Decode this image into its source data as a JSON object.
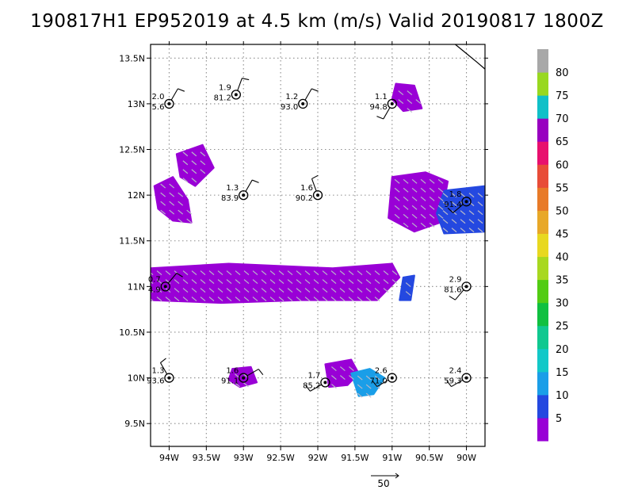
{
  "title": "190817H1 EP952019 at 4.5 km (m/s) Valid 20190817 1800Z",
  "chart_data": {
    "type": "scatter",
    "title": "190817H1 EP952019 at 4.5 km (m/s) Valid 20190817 1800Z",
    "xlim": [
      -94.25,
      -89.75
    ],
    "ylim": [
      9.25,
      13.65
    ],
    "x_ticks": [
      {
        "v": -94.0,
        "label": "94W"
      },
      {
        "v": -93.5,
        "label": "93.5W"
      },
      {
        "v": -93.0,
        "label": "93W"
      },
      {
        "v": -92.5,
        "label": "92.5W"
      },
      {
        "v": -92.0,
        "label": "92W"
      },
      {
        "v": -91.5,
        "label": "91.5W"
      },
      {
        "v": -91.0,
        "label": "91W"
      },
      {
        "v": -90.5,
        "label": "90.5W"
      },
      {
        "v": -90.0,
        "label": "90W"
      }
    ],
    "y_ticks": [
      {
        "v": 9.5,
        "label": "9.5N"
      },
      {
        "v": 10.0,
        "label": "10N"
      },
      {
        "v": 10.5,
        "label": "10.5N"
      },
      {
        "v": 11.0,
        "label": "11N"
      },
      {
        "v": 11.5,
        "label": "11.5N"
      },
      {
        "v": 12.0,
        "label": "12N"
      },
      {
        "v": 12.5,
        "label": "12.5N"
      },
      {
        "v": 13.0,
        "label": "13N"
      },
      {
        "v": 13.5,
        "label": "13.5N"
      }
    ],
    "grid": true,
    "colorbar": {
      "labels": [
        "5",
        "10",
        "15",
        "20",
        "25",
        "30",
        "35",
        "40",
        "45",
        "50",
        "55",
        "60",
        "65",
        "70",
        "75",
        "80"
      ],
      "colors": [
        "#9900d6",
        "#2448e0",
        "#1a9ee8",
        "#12c8c8",
        "#10c890",
        "#10c040",
        "#52cc14",
        "#a8d820",
        "#e8d820",
        "#e8a828",
        "#e87a28",
        "#e84c38",
        "#e8106e",
        "#9800c0",
        "#10c0c8",
        "#98d820",
        "#a8a8a8"
      ]
    },
    "reference_vector": {
      "value": 50,
      "label": "50"
    },
    "wind_regions": [
      {
        "pts": [
          [
            -94.25,
            11.2
          ],
          [
            -93.2,
            11.25
          ],
          [
            -91.8,
            11.2
          ],
          [
            -91.0,
            11.25
          ],
          [
            -90.9,
            11.1
          ],
          [
            -91.2,
            10.85
          ],
          [
            -92.2,
            10.85
          ],
          [
            -93.3,
            10.82
          ],
          [
            -94.25,
            10.85
          ]
        ],
        "level": 1
      },
      {
        "pts": [
          [
            -93.9,
            12.45
          ],
          [
            -93.55,
            12.55
          ],
          [
            -93.4,
            12.3
          ],
          [
            -93.65,
            12.1
          ],
          [
            -93.85,
            12.2
          ]
        ],
        "level": 1
      },
      {
        "pts": [
          [
            -94.2,
            12.1
          ],
          [
            -93.95,
            12.2
          ],
          [
            -93.75,
            11.95
          ],
          [
            -93.7,
            11.7
          ],
          [
            -93.95,
            11.72
          ],
          [
            -94.15,
            11.85
          ]
        ],
        "level": 1
      },
      {
        "pts": [
          [
            -91.0,
            12.2
          ],
          [
            -90.55,
            12.25
          ],
          [
            -90.25,
            12.15
          ],
          [
            -90.35,
            11.7
          ],
          [
            -90.7,
            11.6
          ],
          [
            -91.05,
            11.75
          ]
        ],
        "level": 1
      },
      {
        "pts": [
          [
            -90.3,
            12.05
          ],
          [
            -89.75,
            12.1
          ],
          [
            -89.75,
            11.6
          ],
          [
            -90.3,
            11.58
          ],
          [
            -90.4,
            11.8
          ]
        ],
        "level": 2
      },
      {
        "pts": [
          [
            -90.95,
            13.22
          ],
          [
            -90.7,
            13.2
          ],
          [
            -90.6,
            12.95
          ],
          [
            -90.85,
            12.92
          ],
          [
            -91.0,
            13.05
          ]
        ],
        "level": 1
      },
      {
        "pts": [
          [
            -91.9,
            10.15
          ],
          [
            -91.55,
            10.2
          ],
          [
            -91.45,
            10.05
          ],
          [
            -91.6,
            9.92
          ],
          [
            -91.85,
            9.9
          ]
        ],
        "level": 1
      },
      {
        "pts": [
          [
            -91.55,
            10.05
          ],
          [
            -91.3,
            10.1
          ],
          [
            -91.1,
            10.0
          ],
          [
            -91.25,
            9.82
          ],
          [
            -91.45,
            9.8
          ]
        ],
        "level": 3
      },
      {
        "pts": [
          [
            -93.15,
            10.1
          ],
          [
            -92.9,
            10.12
          ],
          [
            -92.82,
            9.95
          ],
          [
            -93.05,
            9.9
          ],
          [
            -93.2,
            9.98
          ]
        ],
        "level": 1
      },
      {
        "pts": [
          [
            -90.85,
            11.1
          ],
          [
            -90.7,
            11.12
          ],
          [
            -90.75,
            10.85
          ],
          [
            -90.9,
            10.85
          ]
        ],
        "level": 2
      }
    ],
    "stations": [
      {
        "lon": -94.0,
        "lat": 13.0,
        "speed": "2.0",
        "pressure": "5.6"
      },
      {
        "lon": -93.1,
        "lat": 13.1,
        "speed": "1.9",
        "pressure": "81.2"
      },
      {
        "lon": -92.2,
        "lat": 13.0,
        "speed": "1.2",
        "pressure": "93.0"
      },
      {
        "lon": -91.0,
        "lat": 13.0,
        "speed": "1.1",
        "pressure": "94.8"
      },
      {
        "lon": -93.0,
        "lat": 12.0,
        "speed": "1.3",
        "pressure": "83.9"
      },
      {
        "lon": -92.0,
        "lat": 12.0,
        "speed": "1.6",
        "pressure": "90.2"
      },
      {
        "lon": -90.0,
        "lat": 11.93,
        "speed": "1.8",
        "pressure": "91.4"
      },
      {
        "lon": -94.05,
        "lat": 11.0,
        "speed": "0.7",
        "pressure": "4.9"
      },
      {
        "lon": -90.0,
        "lat": 11.0,
        "speed": "2.9",
        "pressure": "81.6"
      },
      {
        "lon": -94.0,
        "lat": 10.0,
        "speed": "1.3",
        "pressure": "93.6"
      },
      {
        "lon": -93.0,
        "lat": 10.0,
        "speed": "1.6",
        "pressure": "91.1"
      },
      {
        "lon": -91.9,
        "lat": 9.95,
        "speed": "1.7",
        "pressure": "85.2"
      },
      {
        "lon": -91.0,
        "lat": 10.0,
        "speed": "2.6",
        "pressure": "71.0"
      },
      {
        "lon": -90.0,
        "lat": 10.0,
        "speed": "2.4",
        "pressure": "59.3"
      }
    ]
  }
}
